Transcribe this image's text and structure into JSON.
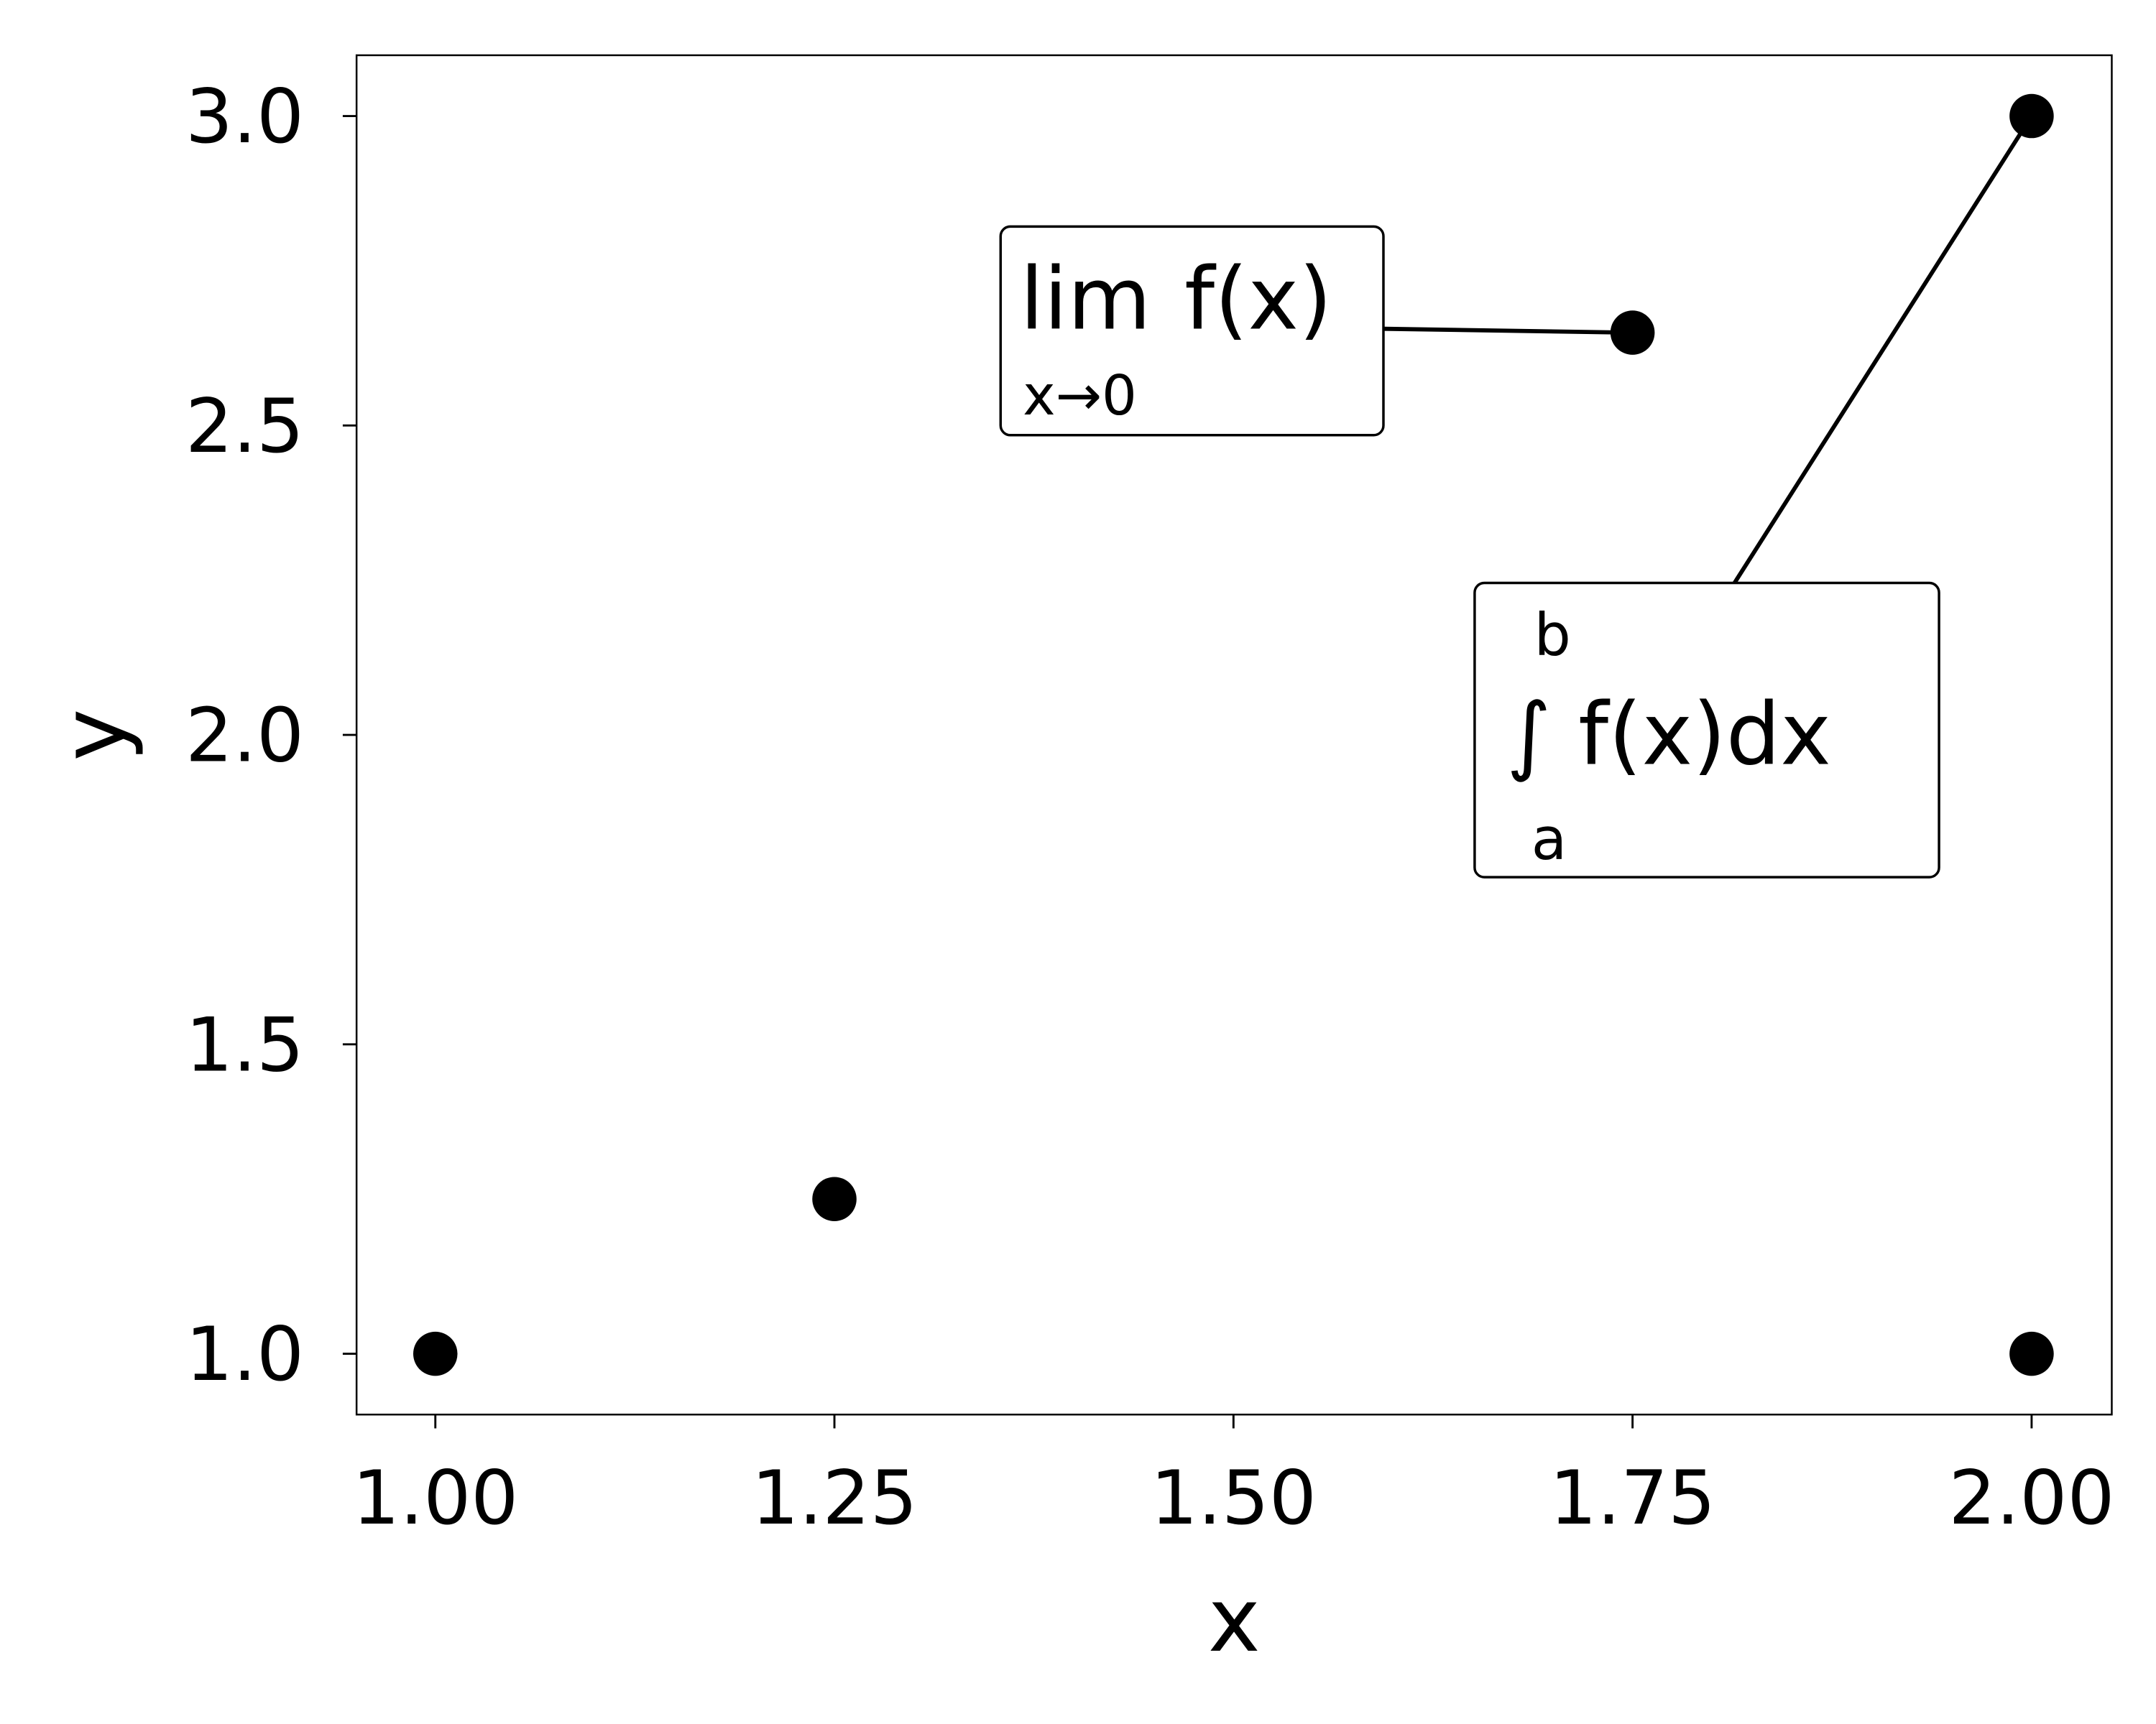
{
  "chart_data": {
    "type": "scatter",
    "xlabel": "x",
    "ylabel": "y",
    "xlim": [
      0.95,
      2.05
    ],
    "ylim": [
      0.9,
      3.1
    ],
    "grid": false,
    "x_ticks": [
      1.0,
      1.25,
      1.5,
      1.75,
      2.0
    ],
    "x_tick_labels": [
      "1.00",
      "1.25",
      "1.50",
      "1.75",
      "2.00"
    ],
    "y_ticks": [
      1.0,
      1.5,
      2.0,
      2.5,
      3.0
    ],
    "y_tick_labels": [
      "1.0",
      "1.5",
      "2.0",
      "2.5",
      "3.0"
    ],
    "points": [
      {
        "x": 1.0,
        "y": 1.0
      },
      {
        "x": 1.25,
        "y": 1.25
      },
      {
        "x": 1.75,
        "y": 2.65
      },
      {
        "x": 2.0,
        "y": 3.0
      },
      {
        "x": 2.0,
        "y": 1.0
      }
    ],
    "annotations": [
      {
        "target": {
          "x": 1.75,
          "y": 2.65
        },
        "main": "lim f(x)",
        "lim_word": "lim",
        "lim_func": "f(x)",
        "lim_sub": "x→0"
      },
      {
        "target": {
          "x": 2.0,
          "y": 3.0
        },
        "main": "∫ f(x)dx",
        "int_sign": "∫",
        "int_upper": "b",
        "int_lower": "a",
        "int_body": "f(x)dx"
      }
    ]
  }
}
